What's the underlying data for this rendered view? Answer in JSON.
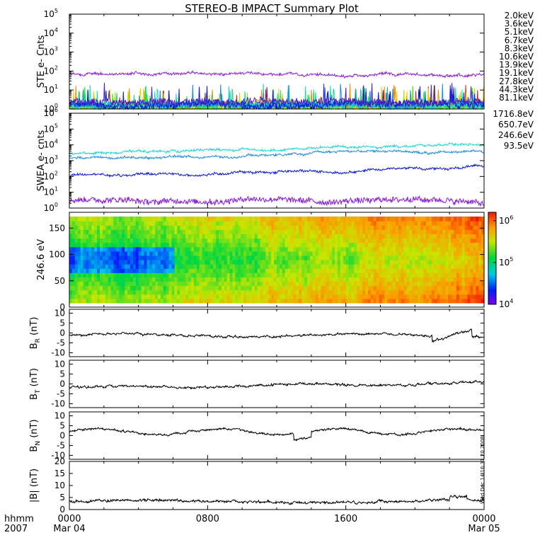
{
  "chart_data": {
    "title": "STEREO-B IMPACT Summary Plot",
    "type": "multi-panel time series",
    "time_axis": {
      "unit_label": "hhmm",
      "year_label": "2007",
      "start_date": "Mar 04",
      "end_date": "Mar 05",
      "ticks": [
        {
          "hours": 0,
          "label": "0000",
          "date": "Mar 04"
        },
        {
          "hours": 8,
          "label": "0800",
          "date": ""
        },
        {
          "hours": 16,
          "label": "1600",
          "date": ""
        },
        {
          "hours": 24,
          "label": "0000",
          "date": "Mar 05"
        }
      ],
      "range_hours": [
        0,
        24
      ]
    },
    "timestamp": "Wed Dec 14 16:31:20 2008",
    "panels": [
      {
        "id": "ste",
        "ylabel": "STE e- Cnts",
        "scale": "log",
        "ylim_exp": [
          0,
          5
        ],
        "tick_exps": [
          "0",
          "1",
          "2",
          "3",
          "4",
          "5"
        ],
        "series": [
          {
            "name": "2.0keV",
            "color": "#8a1fd8",
            "level": 70
          },
          {
            "name": "3.6keV",
            "color": "#4b1fc0",
            "level": 2.4
          },
          {
            "name": "5.1keV",
            "color": "#0a18e0",
            "level": 2.0
          },
          {
            "name": "6.7keV",
            "color": "#1c8be0",
            "level": 1.8
          },
          {
            "name": "8.3keV",
            "color": "#19d8cf",
            "level": 1.5
          },
          {
            "name": "10.6keV",
            "color": "#14dc8a",
            "level": 1.6
          },
          {
            "name": "13.9keV",
            "color": "#3ae000",
            "level": 1.4
          },
          {
            "name": "19.1keV",
            "color": "#b4e000",
            "level": 1.3
          },
          {
            "name": "27.8keV",
            "color": "#f2d000",
            "level": 1.35
          },
          {
            "name": "44.3keV",
            "color": "#f28c00",
            "level": 1.6
          },
          {
            "name": "81.1keV",
            "color": "#e01f10",
            "level": 1.2
          }
        ]
      },
      {
        "id": "swea",
        "ylabel": "SWEA e- cnts",
        "scale": "log",
        "ylim_exp": [
          0,
          6
        ],
        "tick_exps": [
          "0",
          "1",
          "2",
          "3",
          "4",
          "5",
          "6"
        ],
        "series": [
          {
            "name": "1716.8eV",
            "color": "#8a1fd8",
            "level": 3
          },
          {
            "name": "650.7eV",
            "color": "#0a18e0",
            "level": 110
          },
          {
            "name": "246.6eV",
            "color": "#1c8be0",
            "level": 1400
          },
          {
            "name": "93.5eV",
            "color": "#19d8cf",
            "level": 3000
          }
        ]
      },
      {
        "id": "pad",
        "ylabel": "246.6 eV",
        "type": "heatmap",
        "ylim": [
          0,
          180
        ],
        "yticks": [
          "0",
          "50",
          "100",
          "150"
        ],
        "colorbar": {
          "scale": "log",
          "range_exp": [
            4,
            6.2
          ],
          "tick_exps": [
            "4",
            "5",
            "6"
          ]
        }
      },
      {
        "id": "br",
        "ylabel": "B",
        "sub": "R",
        "unit": " (nT)",
        "ylim": [
          -12,
          12
        ],
        "yticks": [
          "-10",
          "-5",
          "0",
          "5",
          "10"
        ]
      },
      {
        "id": "bt",
        "ylabel": "B",
        "sub": "T",
        "unit": " (nT)",
        "ylim": [
          -12,
          12
        ],
        "yticks": [
          "-10",
          "-5",
          "0",
          "5",
          "10"
        ]
      },
      {
        "id": "bn",
        "ylabel": "B",
        "sub": "N",
        "unit": " (nT)",
        "ylim": [
          -12,
          12
        ],
        "yticks": [
          "-10",
          "-5",
          "0",
          "5",
          "10"
        ]
      },
      {
        "id": "bmag",
        "ylabel": "|B| (nT)",
        "ylim": [
          0,
          20
        ],
        "yticks": [
          "0",
          "5",
          "10",
          "15",
          "20"
        ]
      }
    ]
  }
}
